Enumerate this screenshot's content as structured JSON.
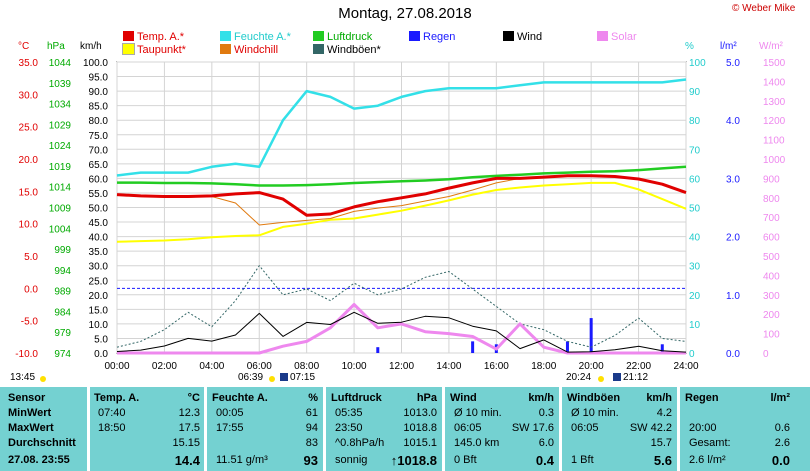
{
  "title": "Montag, 27.08.2018",
  "credit": "© Weber Mike",
  "legend": [
    {
      "label": "Temp. A.*",
      "color": "#e00000"
    },
    {
      "label": "Feuchte A.*",
      "color": "#33e0e8"
    },
    {
      "label": "Luftdruck",
      "color": "#22cc22"
    },
    {
      "label": "Regen",
      "color": "#1a1aff"
    },
    {
      "label": "Wind",
      "color": "#000000"
    },
    {
      "label": "Solar",
      "color": "#ee88ee"
    },
    {
      "label": "Taupunkt*",
      "color": "#ffff00"
    },
    {
      "label": "Windchill",
      "color": "#e07a10"
    },
    {
      "label": "Windböen*",
      "color": "#336666"
    }
  ],
  "units": {
    "temp": "°C",
    "press": "hPa",
    "wind": "km/h",
    "hum": "%",
    "rain": "l/m²",
    "solar": "W/m²"
  },
  "axes": {
    "temp_ticks": [
      "35.0",
      "30.0",
      "25.0",
      "20.0",
      "15.0",
      "10.0",
      "5.0",
      "0.0",
      "-5.0",
      "-10.0"
    ],
    "press_ticks": [
      "1044",
      "1039",
      "1034",
      "1029",
      "1024",
      "1019",
      "1014",
      "1009",
      "1004",
      "999",
      "994",
      "989",
      "984",
      "979",
      "974"
    ],
    "wind_ticks": [
      "100.0",
      "95.0",
      "90.0",
      "85.0",
      "80.0",
      "75.0",
      "70.0",
      "65.0",
      "60.0",
      "55.0",
      "50.0",
      "45.0",
      "40.0",
      "35.0",
      "30.0",
      "25.0",
      "20.0",
      "15.0",
      "10.0",
      "5.0",
      "0.0"
    ],
    "hum_ticks": [
      "100",
      "90",
      "80",
      "70",
      "60",
      "50",
      "40",
      "30",
      "20",
      "10",
      "0"
    ],
    "rain_ticks": [
      "5.0",
      "4.0",
      "3.0",
      "2.0",
      "1.0",
      "0.0"
    ],
    "solar_ticks": [
      "1500",
      "1400",
      "1300",
      "1200",
      "1100",
      "1000",
      "900",
      "800",
      "700",
      "600",
      "500",
      "400",
      "300",
      "200",
      "100",
      "0"
    ],
    "time_ticks": [
      "00:00",
      "02:00",
      "04:00",
      "06:00",
      "08:00",
      "10:00",
      "12:00",
      "14:00",
      "16:00",
      "18:00",
      "20:00",
      "22:00",
      "24:00"
    ]
  },
  "sun": {
    "now": "13:45",
    "rise": "06:39",
    "rise_end": "07:15",
    "set": "20:24",
    "set_end": "21:12"
  },
  "chart_data": {
    "type": "line",
    "title": "Montag, 27.08.2018",
    "x": [
      0,
      1,
      2,
      3,
      4,
      5,
      6,
      7,
      8,
      9,
      10,
      11,
      12,
      13,
      14,
      15,
      16,
      17,
      18,
      19,
      20,
      21,
      22,
      23,
      24
    ],
    "xlim": [
      0,
      24
    ],
    "series": [
      {
        "name": "Temp. A.*",
        "axis": "temp",
        "values": [
          14.5,
          14.3,
          14.2,
          14.2,
          14.3,
          14.6,
          14.8,
          13.8,
          11.3,
          11.5,
          12.6,
          13.4,
          14.0,
          14.6,
          15.5,
          16.3,
          17.0,
          17.0,
          17.2,
          17.4,
          17.4,
          17.3,
          16.9,
          16.1,
          14.8
        ]
      },
      {
        "name": "Feuchte A.*",
        "axis": "hum",
        "values": [
          61,
          62,
          62,
          62,
          64,
          65,
          64,
          80,
          90,
          88,
          84,
          85,
          88,
          90,
          91,
          91,
          91,
          92,
          93,
          93,
          93,
          93,
          93,
          93,
          94
        ]
      },
      {
        "name": "Luftdruck",
        "axis": "press",
        "values": [
          1015.0,
          1015.0,
          1014.9,
          1014.9,
          1014.8,
          1014.6,
          1014.3,
          1014.3,
          1014.4,
          1014.6,
          1014.9,
          1015.1,
          1015.3,
          1015.5,
          1015.8,
          1016.3,
          1016.6,
          1016.9,
          1017.2,
          1017.4,
          1017.6,
          1017.7,
          1018.0,
          1018.4,
          1018.8
        ]
      },
      {
        "name": "Taupunkt*",
        "axis": "temp",
        "values": [
          7.2,
          7.3,
          7.4,
          7.6,
          7.9,
          8.1,
          8.2,
          9.5,
          10.0,
          10.6,
          10.8,
          11.4,
          12.0,
          12.8,
          13.6,
          14.5,
          15.2,
          15.6,
          15.9,
          16.1,
          16.3,
          16.3,
          15.3,
          13.8,
          12.3
        ]
      },
      {
        "name": "Windchill",
        "axis": "temp",
        "values": [
          14.4,
          14.2,
          14.1,
          14.1,
          14.2,
          13.2,
          9.8,
          10.2,
          10.5,
          10.8,
          11.9,
          12.4,
          12.8,
          13.5,
          14.2,
          15.2,
          16.3,
          17.0,
          17.2,
          17.4,
          17.4,
          17.3,
          16.9,
          16.1,
          14.8
        ]
      },
      {
        "name": "Wind",
        "axis": "wind",
        "values": [
          0.5,
          1.0,
          2.4,
          5.0,
          4.1,
          6.2,
          13.6,
          5.7,
          10.5,
          9.8,
          14.0,
          10.2,
          10.6,
          12.6,
          12.1,
          9.2,
          7.6,
          1.5,
          4.5,
          0.3,
          0.4,
          1.1,
          2.3,
          0.8,
          0.3
        ]
      },
      {
        "name": "Windböen*",
        "axis": "wind",
        "values": [
          2,
          4,
          8,
          14,
          9,
          18,
          30,
          20,
          22,
          18,
          24,
          20,
          22,
          26,
          28,
          22,
          16,
          10,
          8,
          4,
          2,
          6,
          12,
          5,
          4
        ]
      },
      {
        "name": "Solar",
        "axis": "solar",
        "values": [
          0,
          0,
          0,
          0,
          0,
          0,
          0,
          35,
          60,
          130,
          250,
          130,
          150,
          110,
          100,
          85,
          20,
          150,
          30,
          0,
          0,
          0,
          0,
          0,
          0
        ]
      },
      {
        "name": "Regen",
        "axis": "rain",
        "values": [
          0,
          0,
          0,
          0,
          0,
          0,
          0,
          0,
          0,
          0,
          0,
          0.1,
          0,
          0,
          0,
          0.2,
          0.15,
          0,
          0,
          0.2,
          0.6,
          0,
          0,
          0.15,
          0
        ]
      }
    ],
    "temp_ylim": [
      -10,
      35
    ],
    "press_ylim": [
      974,
      1044
    ],
    "wind_ylim": [
      0,
      100
    ],
    "hum_ylim": [
      0,
      100
    ],
    "rain_ylim": [
      0,
      5
    ],
    "solar_ylim": [
      0,
      1500
    ],
    "grid": true
  },
  "table": {
    "sections": [
      {
        "header": [
          "Sensor"
        ],
        "rows": [
          [
            "MinWert"
          ],
          [
            "MaxWert"
          ],
          [
            "Durchschnitt"
          ],
          [
            "27.08. 23:55"
          ]
        ]
      },
      {
        "header": [
          "Temp. A.",
          "°C"
        ],
        "rows": [
          [
            "07:40",
            "12.3"
          ],
          [
            "18:50",
            "17.5"
          ],
          [
            "",
            "15.15"
          ],
          [
            "",
            "14.4"
          ]
        ]
      },
      {
        "header": [
          "Feuchte A.",
          "%"
        ],
        "rows": [
          [
            "00:05",
            "61"
          ],
          [
            "17:55",
            "94"
          ],
          [
            "",
            "83"
          ],
          [
            "11.51 g/m³",
            "93"
          ]
        ]
      },
      {
        "header": [
          "Luftdruck",
          "hPa"
        ],
        "rows": [
          [
            "05:35",
            "1013.0"
          ],
          [
            "23:50",
            "1018.8"
          ],
          [
            "^0.8hPa/h",
            "1015.1"
          ],
          [
            "sonnig",
            "↑1018.8"
          ]
        ]
      },
      {
        "header": [
          "Wind",
          "km/h"
        ],
        "rows": [
          [
            "Ø 10 min.",
            "0.3"
          ],
          [
            "06:05",
            "SW 17.6"
          ],
          [
            "145.0 km",
            "6.0"
          ],
          [
            "0 Bft",
            "0.4"
          ]
        ]
      },
      {
        "header": [
          "Windböen",
          "km/h"
        ],
        "rows": [
          [
            "Ø 10 min.",
            "4.2"
          ],
          [
            "06:05",
            "SW 42.2"
          ],
          [
            "",
            "15.7"
          ],
          [
            "1 Bft",
            "5.6"
          ]
        ]
      },
      {
        "header": [
          "Regen",
          "l/m²"
        ],
        "rows": [
          [
            "",
            ""
          ],
          [
            "20:00",
            "0.6"
          ],
          [
            "Gesamt:",
            "2.6"
          ],
          [
            "2.6 l/m²",
            "0.0"
          ]
        ]
      }
    ]
  }
}
